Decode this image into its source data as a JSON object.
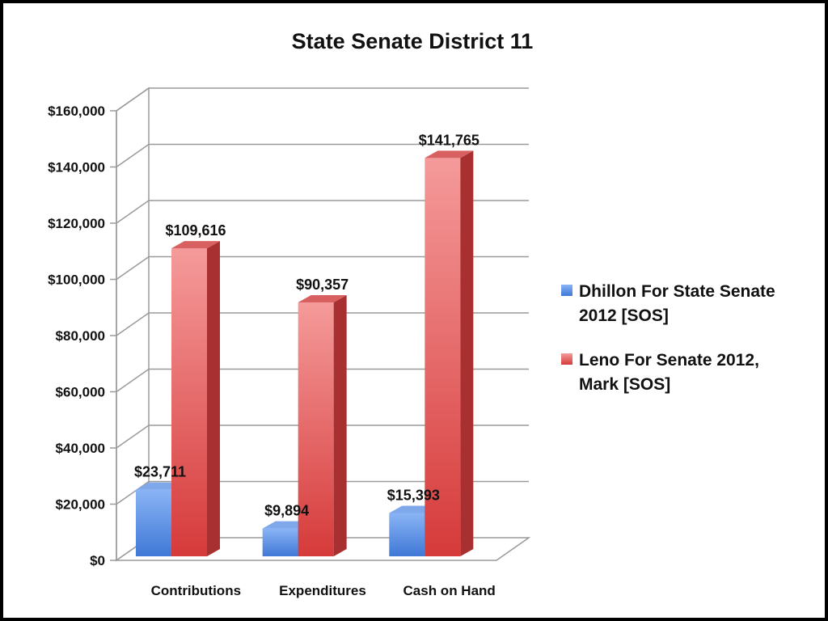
{
  "chart_data": {
    "type": "bar",
    "title": "State Senate District 11",
    "categories": [
      "Contributions",
      "Expenditures",
      "Cash on Hand"
    ],
    "series": [
      {
        "name": "Dhillon For State Senate 2012 [SOS]",
        "name_lines": [
          "Dhillon For State Senate",
          "2012 [SOS]"
        ],
        "values": [
          23711,
          9894,
          15393
        ],
        "labels": [
          "$23,711",
          "$9,894",
          "$15,393"
        ],
        "color": "#5b8fe0"
      },
      {
        "name": "Leno For Senate 2012, Mark [SOS]",
        "name_lines": [
          "Leno For Senate 2012,",
          "Mark [SOS]"
        ],
        "values": [
          109616,
          90357,
          141765
        ],
        "labels": [
          "$109,616",
          "$90,357",
          "$141,765"
        ],
        "color": "#e04a4a"
      }
    ],
    "yticks": [
      0,
      20000,
      40000,
      60000,
      80000,
      100000,
      120000,
      140000,
      160000
    ],
    "ytick_labels": [
      "$0",
      "$20,000",
      "$40,000",
      "$60,000",
      "$80,000",
      "$100,000",
      "$120,000",
      "$140,000",
      "$160,000"
    ],
    "ylim": [
      0,
      160000
    ],
    "grid": true,
    "legend": "right",
    "style": "3d-column"
  }
}
